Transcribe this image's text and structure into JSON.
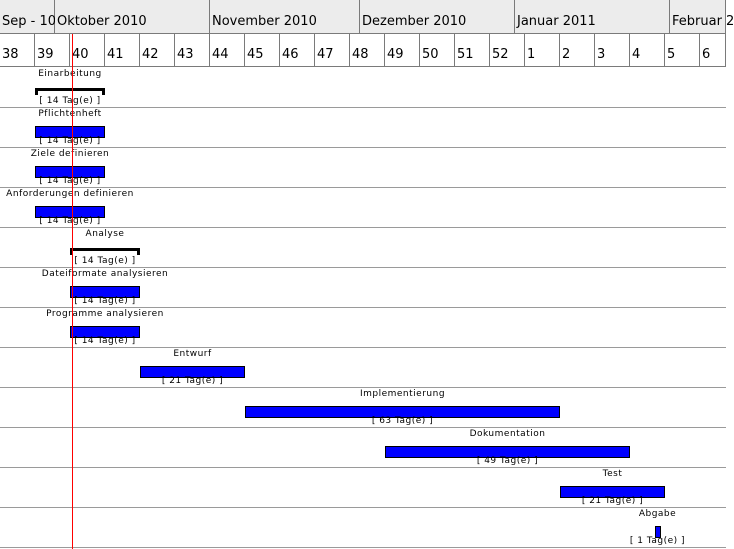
{
  "months": [
    "Sep - 10",
    "Oktober 2010",
    "November 2010",
    "Dezember 2010",
    "Januar 2011",
    "Februar 2"
  ],
  "weeks": [
    "38",
    "39",
    "40",
    "41",
    "42",
    "43",
    "44",
    "45",
    "46",
    "47",
    "48",
    "49",
    "50",
    "51",
    "52",
    "1",
    "2",
    "3",
    "4",
    "5",
    "6"
  ],
  "tasks": [
    {
      "name": "Einarbeitung",
      "duration": "[ 14 Tag(e) ]",
      "start_week_index": 1,
      "length_weeks": 2,
      "type": "summary"
    },
    {
      "name": "Pflichtenheft",
      "duration": "[ 14 Tag(e) ]",
      "start_week_index": 1,
      "length_weeks": 2,
      "type": "task"
    },
    {
      "name": "Ziele definieren",
      "duration": "[ 14 Tag(e) ]",
      "start_week_index": 1,
      "length_weeks": 2,
      "type": "task"
    },
    {
      "name": "Anforderungen definieren",
      "duration": "[ 14 Tag(e) ]",
      "start_week_index": 1,
      "length_weeks": 2,
      "type": "task"
    },
    {
      "name": "Analyse",
      "duration": "[ 14 Tag(e) ]",
      "start_week_index": 2,
      "length_weeks": 2,
      "type": "summary"
    },
    {
      "name": "Dateiformate analysieren",
      "duration": "[ 14 Tag(e) ]",
      "start_week_index": 2,
      "length_weeks": 2,
      "type": "task"
    },
    {
      "name": "Programme analysieren",
      "duration": "[ 14 Tag(e) ]",
      "start_week_index": 2,
      "length_weeks": 2,
      "type": "task"
    },
    {
      "name": "Entwurf",
      "duration": "[ 21 Tag(e) ]",
      "start_week_index": 4,
      "length_weeks": 3,
      "type": "task"
    },
    {
      "name": "Implementierung",
      "duration": "[ 63 Tag(e) ]",
      "start_week_index": 7,
      "length_weeks": 9,
      "type": "task"
    },
    {
      "name": "Dokumentation",
      "duration": "[ 49 Tag(e) ]",
      "start_week_index": 11,
      "length_weeks": 7,
      "type": "task"
    },
    {
      "name": "Test",
      "duration": "[ 21 Tag(e) ]",
      "start_week_index": 16,
      "length_weeks": 3,
      "type": "task"
    },
    {
      "name": "Abgabe",
      "duration": "[ 1 Tag(e) ]",
      "start_week_index": 18.7,
      "length_weeks": 0.15,
      "type": "task"
    }
  ],
  "colors": {
    "bar": "#0000ff",
    "today_line": "#ff0000"
  }
}
